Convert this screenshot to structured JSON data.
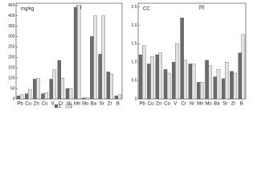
{
  "chart_data": [
    {
      "type": "bar",
      "title": "(a)",
      "ylabel": "mg/kg",
      "categories": [
        "Pb",
        "Cu",
        "Zn",
        "Co",
        "V",
        "Cr",
        "Ni",
        "Mn",
        "Mo",
        "Ba",
        "Sr",
        "Zr",
        "B"
      ],
      "series": [
        {
          "name": "1",
          "color": "#6b6b6b",
          "values": [
            15,
            25,
            95,
            25,
            95,
            185,
            50,
            440,
            5,
            300,
            215,
            130,
            15
          ]
        },
        {
          "name": "2",
          "color": "#e2e2e2",
          "values": [
            20,
            45,
            100,
            30,
            140,
            100,
            50,
            450,
            5,
            400,
            400,
            120,
            20
          ]
        }
      ],
      "ylim": [
        0,
        460
      ],
      "yticks": [
        0,
        50,
        100,
        150,
        200,
        250,
        300,
        350,
        400,
        450
      ]
    },
    {
      "type": "bar",
      "title": "(b)",
      "ylabel": "CC",
      "categories": [
        "Pb",
        "Cu",
        "Zn",
        "Co",
        "V",
        "Cr",
        "Ni",
        "Mn",
        "Mo",
        "Ba",
        "Sr",
        "Zr",
        "B"
      ],
      "series": [
        {
          "color": "#6b6b6b",
          "values": [
            1.2,
            0.95,
            1.2,
            0.8,
            1.0,
            2.2,
            0.95,
            0.45,
            1.05,
            0.6,
            0.55,
            0.75,
            1.25
          ]
        },
        {
          "color": "#e2e2e2",
          "values": [
            1.45,
            1.15,
            1.25,
            0.7,
            1.5,
            1.05,
            0.95,
            0.45,
            0.9,
            0.8,
            1.0,
            0.7,
            1.75
          ]
        }
      ],
      "ylim": [
        0,
        2.6
      ],
      "yticks": [
        0,
        0.5,
        {
          "value": 1,
          "label": "1.0"
        },
        1.5,
        {
          "value": 2,
          "label": "2.0"
        },
        2.5
      ]
    }
  ]
}
